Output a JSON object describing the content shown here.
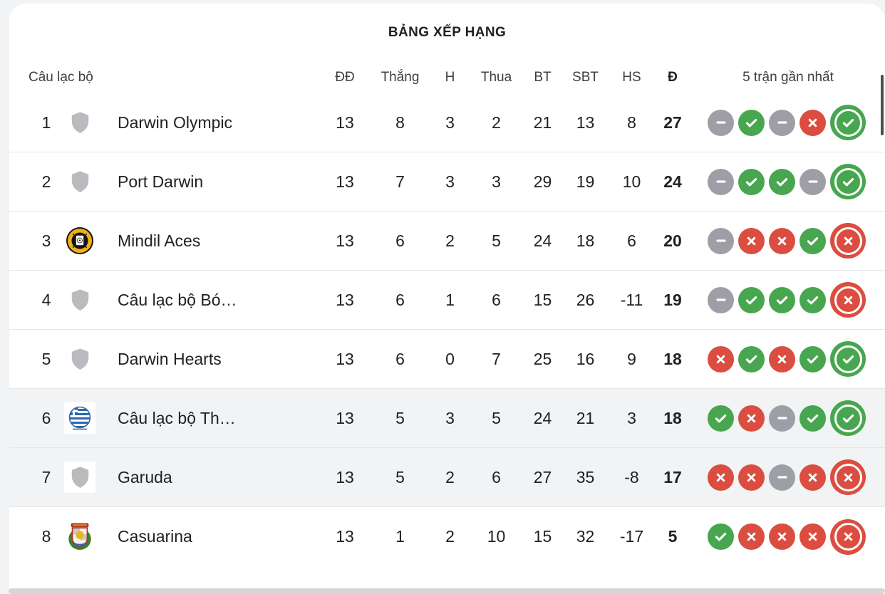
{
  "title": "BẢNG XẾP HẠNG",
  "colors": {
    "win": "#47A64F",
    "loss": "#DB4D40",
    "draw": "#9E9EA7",
    "row_highlight": "#F1F3F4"
  },
  "table": {
    "columns": {
      "club": "Câu lạc bộ",
      "played": "ĐĐ",
      "wins": "Thắng",
      "draws": "H",
      "losses": "Thua",
      "goals_for": "BT",
      "goals_against": "SBT",
      "goal_diff": "HS",
      "points": "Đ",
      "form": "5 trận gần nhất"
    },
    "rows": [
      {
        "rank": "1",
        "club": "Darwin Olympic",
        "badge": "generic-shield",
        "played": "13",
        "wins": "8",
        "draws": "3",
        "losses": "2",
        "gf": "21",
        "ga": "13",
        "gd": "8",
        "pts": "27",
        "form": [
          "draw",
          "win",
          "draw",
          "loss",
          "win"
        ],
        "highlighted": false
      },
      {
        "rank": "2",
        "club": "Port Darwin",
        "badge": "generic-shield",
        "played": "13",
        "wins": "7",
        "draws": "3",
        "losses": "3",
        "gf": "29",
        "ga": "19",
        "gd": "10",
        "pts": "24",
        "form": [
          "draw",
          "win",
          "win",
          "draw",
          "win"
        ],
        "highlighted": false
      },
      {
        "rank": "3",
        "club": "Mindil Aces",
        "badge": "mindil-aces-crest",
        "played": "13",
        "wins": "6",
        "draws": "2",
        "losses": "5",
        "gf": "24",
        "ga": "18",
        "gd": "6",
        "pts": "20",
        "form": [
          "draw",
          "loss",
          "loss",
          "win",
          "loss"
        ],
        "highlighted": false
      },
      {
        "rank": "4",
        "club": "Câu lạc bộ Bó…",
        "badge": "generic-shield",
        "played": "13",
        "wins": "6",
        "draws": "1",
        "losses": "6",
        "gf": "15",
        "ga": "26",
        "gd": "-11",
        "pts": "19",
        "form": [
          "draw",
          "win",
          "win",
          "win",
          "loss"
        ],
        "highlighted": false
      },
      {
        "rank": "5",
        "club": "Darwin Hearts",
        "badge": "generic-shield",
        "played": "13",
        "wins": "6",
        "draws": "0",
        "losses": "7",
        "gf": "25",
        "ga": "16",
        "gd": "9",
        "pts": "18",
        "form": [
          "loss",
          "win",
          "loss",
          "win",
          "win"
        ],
        "highlighted": false
      },
      {
        "rank": "6",
        "club": "Câu lạc bộ Th…",
        "badge": "hellenic-athletic-crest",
        "played": "13",
        "wins": "5",
        "draws": "3",
        "losses": "5",
        "gf": "24",
        "ga": "21",
        "gd": "3",
        "pts": "18",
        "form": [
          "win",
          "loss",
          "draw",
          "win",
          "win"
        ],
        "highlighted": true
      },
      {
        "rank": "7",
        "club": "Garuda",
        "badge": "generic-shield",
        "played": "13",
        "wins": "5",
        "draws": "2",
        "losses": "6",
        "gf": "27",
        "ga": "35",
        "gd": "-8",
        "pts": "17",
        "form": [
          "loss",
          "loss",
          "draw",
          "loss",
          "loss"
        ],
        "highlighted": true
      },
      {
        "rank": "8",
        "club": "Casuarina",
        "badge": "casuarina-crest",
        "played": "13",
        "wins": "1",
        "draws": "2",
        "losses": "10",
        "gf": "15",
        "ga": "32",
        "gd": "-17",
        "pts": "5",
        "form": [
          "win",
          "loss",
          "loss",
          "loss",
          "loss"
        ],
        "highlighted": false
      }
    ]
  }
}
